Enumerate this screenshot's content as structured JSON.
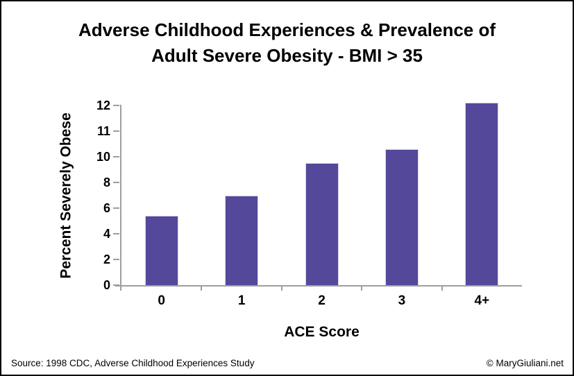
{
  "title": {
    "line1": "Adverse Childhood Experiences & Prevalence of",
    "line2": "Adult Severe Obesity - BMI > 35"
  },
  "chart_data": {
    "type": "bar",
    "title": "Adverse Childhood Experiences & Prevalence of Adult Severe Obesity - BMI > 35",
    "categories": [
      "0",
      "1",
      "2",
      "3",
      "4+"
    ],
    "values": [
      5.4,
      7.0,
      9.5,
      10.3,
      12.1
    ],
    "xlabel": "ACE Score",
    "ylabel": "Percent Severely Obese",
    "y_ticks_bottom_to_top": [
      "0",
      "2",
      "4",
      "6",
      "8",
      "10",
      "11",
      "12"
    ],
    "y_axis_note": "tick marks equally spaced; scale is 2 units per step up to 10, then 1 unit per step (non-linear)",
    "ylim": [
      0,
      12
    ],
    "grid": false,
    "legend": false,
    "bar_color": "#54489B",
    "axis_color": "#9E9E9E"
  },
  "footer": {
    "source": "Source: 1998 CDC, Adverse Childhood Experiences Study",
    "credit": "© MaryGiuliani.net"
  }
}
